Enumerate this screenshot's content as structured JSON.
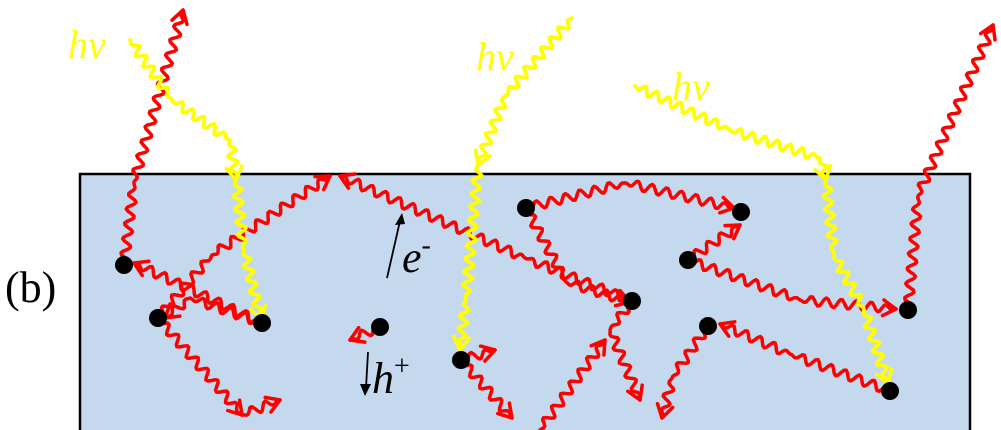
{
  "panel_label": "(b)",
  "photon_label": "hν",
  "electron": {
    "symbol": "e",
    "charge": "-"
  },
  "hole": {
    "symbol": "h",
    "charge": "+"
  },
  "colors": {
    "material_fill": "#c5d9ee",
    "material_stroke": "#000000",
    "photon": "#ffff00",
    "emission": "#ff0000",
    "trap": "#000000",
    "text": "#000000"
  },
  "icons": {
    "trap_site": "black-dot",
    "photon_arrow": "yellow-wavy-arrow",
    "emission_arrow": "red-wavy-arrow"
  }
}
